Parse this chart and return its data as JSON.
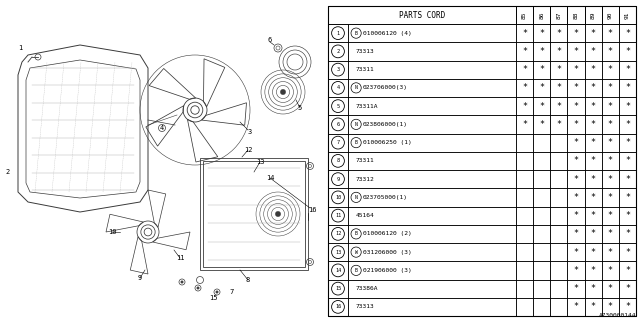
{
  "parts_cord_header": "PARTS CORD",
  "year_cols": [
    "85",
    "86",
    "87",
    "88",
    "89",
    "90",
    "91"
  ],
  "rows": [
    {
      "num": "1",
      "prefix": "B",
      "code": "010006120 (4)",
      "stars": [
        1,
        1,
        1,
        1,
        1,
        1,
        1
      ]
    },
    {
      "num": "2",
      "prefix": "",
      "code": "73313",
      "stars": [
        1,
        1,
        1,
        1,
        1,
        1,
        1
      ]
    },
    {
      "num": "3",
      "prefix": "",
      "code": "73311",
      "stars": [
        1,
        1,
        1,
        1,
        1,
        1,
        1
      ]
    },
    {
      "num": "4",
      "prefix": "N",
      "code": "023706000(3)",
      "stars": [
        1,
        1,
        1,
        1,
        1,
        1,
        1
      ]
    },
    {
      "num": "5",
      "prefix": "",
      "code": "73311A",
      "stars": [
        1,
        1,
        1,
        1,
        1,
        1,
        1
      ]
    },
    {
      "num": "6",
      "prefix": "N",
      "code": "023806000(1)",
      "stars": [
        1,
        1,
        1,
        1,
        1,
        1,
        1
      ]
    },
    {
      "num": "7",
      "prefix": "B",
      "code": "010006250 (1)",
      "stars": [
        0,
        0,
        0,
        1,
        1,
        1,
        1
      ]
    },
    {
      "num": "8",
      "prefix": "",
      "code": "73311",
      "stars": [
        0,
        0,
        0,
        1,
        1,
        1,
        1
      ]
    },
    {
      "num": "9",
      "prefix": "",
      "code": "73312",
      "stars": [
        0,
        0,
        0,
        1,
        1,
        1,
        1
      ]
    },
    {
      "num": "10",
      "prefix": "N",
      "code": "023705000(1)",
      "stars": [
        0,
        0,
        0,
        1,
        1,
        1,
        1
      ]
    },
    {
      "num": "11",
      "prefix": "",
      "code": "45164",
      "stars": [
        0,
        0,
        0,
        1,
        1,
        1,
        1
      ]
    },
    {
      "num": "12",
      "prefix": "B",
      "code": "010006120 (2)",
      "stars": [
        0,
        0,
        0,
        1,
        1,
        1,
        1
      ]
    },
    {
      "num": "13",
      "prefix": "W",
      "code": "031206000 (3)",
      "stars": [
        0,
        0,
        0,
        1,
        1,
        1,
        1
      ]
    },
    {
      "num": "14",
      "prefix": "B",
      "code": "021906000 (3)",
      "stars": [
        0,
        0,
        0,
        1,
        1,
        1,
        1
      ]
    },
    {
      "num": "15",
      "prefix": "",
      "code": "73386A",
      "stars": [
        0,
        0,
        0,
        1,
        1,
        1,
        1
      ]
    },
    {
      "num": "16",
      "prefix": "",
      "code": "73313",
      "stars": [
        0,
        0,
        0,
        1,
        1,
        1,
        1
      ]
    }
  ],
  "bg_color": "#ffffff",
  "footer": "A730000144"
}
